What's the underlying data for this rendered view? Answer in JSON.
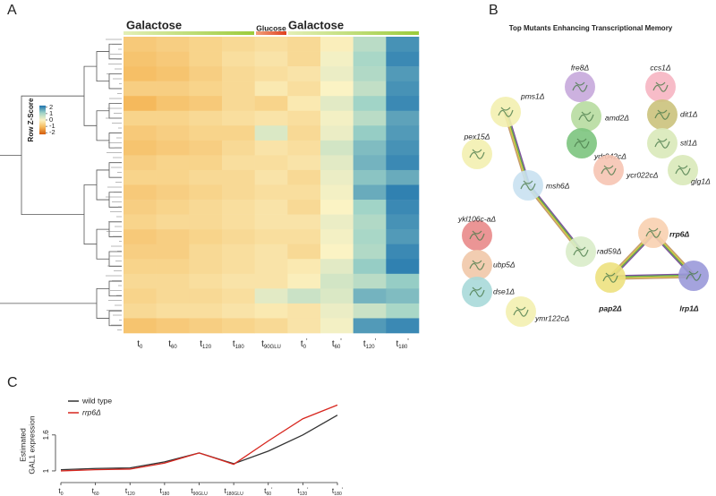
{
  "panels": {
    "a": "A",
    "b": "B",
    "c": "C"
  },
  "chart_data": [
    {
      "type": "heatmap",
      "groups": [
        "Galactose",
        "Glucose",
        "Galactose"
      ],
      "categories": [
        {
          "t": "t",
          "sub": "0"
        },
        {
          "t": "t",
          "sub": "60"
        },
        {
          "t": "t",
          "sub": "120"
        },
        {
          "t": "t",
          "sub": "180"
        },
        {
          "t": "t",
          "sub": "90GLU"
        },
        {
          "t": "t",
          "sub": "0",
          "prime": "'"
        },
        {
          "t": "t",
          "sub": "60",
          "prime": "'"
        },
        {
          "t": "t",
          "sub": "120",
          "prime": "'"
        },
        {
          "t": "t",
          "sub": "180",
          "prime": "'"
        }
      ],
      "rows": [
        [
          -0.8,
          -0.7,
          -0.6,
          -0.5,
          -0.4,
          -0.5,
          -0.1,
          0.8,
          1.9
        ],
        [
          -0.9,
          -0.8,
          -0.6,
          -0.4,
          -0.3,
          -0.5,
          0.1,
          1.0,
          2.0
        ],
        [
          -1.0,
          -0.9,
          -0.7,
          -0.5,
          -0.4,
          -0.3,
          0.2,
          0.9,
          1.8
        ],
        [
          -0.7,
          -0.7,
          -0.6,
          -0.5,
          -0.2,
          -0.4,
          0.0,
          0.7,
          1.9
        ],
        [
          -1.1,
          -0.9,
          -0.8,
          -0.5,
          -0.6,
          -0.2,
          0.3,
          1.1,
          2.0
        ],
        [
          -0.6,
          -0.6,
          -0.5,
          -0.4,
          -0.3,
          -0.4,
          0.1,
          0.8,
          1.7
        ],
        [
          -0.8,
          -0.7,
          -0.6,
          -0.6,
          0.4,
          -0.5,
          0.2,
          1.2,
          1.8
        ],
        [
          -0.9,
          -0.8,
          -0.7,
          -0.5,
          -0.3,
          -0.4,
          0.5,
          1.4,
          1.9
        ],
        [
          -0.7,
          -0.6,
          -0.6,
          -0.4,
          -0.4,
          -0.3,
          0.3,
          1.5,
          2.0
        ],
        [
          -0.6,
          -0.6,
          -0.5,
          -0.5,
          -0.3,
          -0.5,
          0.2,
          1.3,
          1.6
        ],
        [
          -0.8,
          -0.7,
          -0.6,
          -0.5,
          -0.4,
          -0.4,
          0.1,
          1.6,
          2.1
        ],
        [
          -0.7,
          -0.6,
          -0.5,
          -0.4,
          -0.3,
          -0.5,
          0.0,
          1.1,
          2.0
        ],
        [
          -0.6,
          -0.5,
          -0.5,
          -0.4,
          -0.3,
          -0.3,
          0.2,
          0.9,
          1.9
        ],
        [
          -0.8,
          -0.7,
          -0.6,
          -0.5,
          -0.4,
          -0.4,
          0.1,
          1.0,
          1.8
        ],
        [
          -0.7,
          -0.7,
          -0.5,
          -0.4,
          -0.3,
          -0.5,
          0.0,
          0.9,
          2.0
        ],
        [
          -0.6,
          -0.6,
          -0.5,
          -0.4,
          -0.3,
          -0.2,
          0.3,
          1.2,
          2.1
        ],
        [
          -0.5,
          -0.5,
          -0.4,
          -0.3,
          -0.3,
          -0.1,
          0.5,
          0.8,
          1.2
        ],
        [
          -0.6,
          -0.5,
          -0.5,
          -0.4,
          0.3,
          0.6,
          0.4,
          1.5,
          1.4
        ],
        [
          -0.5,
          -0.4,
          -0.4,
          -0.3,
          -0.2,
          -0.3,
          0.2,
          0.6,
          1.0
        ],
        [
          -0.9,
          -0.8,
          -0.7,
          -0.6,
          -0.5,
          -0.3,
          0.1,
          1.8,
          2.0
        ]
      ],
      "colorscale": [
        "#d45a0a",
        "#f5b85a",
        "#fbf3c4",
        "#9fd3c7",
        "#1f74ae"
      ],
      "colorbar": {
        "title": "Row Z-Score",
        "zlim": [
          -2.25,
          2.25
        ],
        "ticks": [
          2,
          1,
          0,
          -1,
          -2
        ]
      }
    },
    {
      "type": "line",
      "ylabel": [
        "Estimated",
        "GAL1 expression"
      ],
      "categories": [
        {
          "t": "t",
          "sub": "0"
        },
        {
          "t": "t",
          "sub": "60"
        },
        {
          "t": "t",
          "sub": "120"
        },
        {
          "t": "t",
          "sub": "180"
        },
        {
          "t": "t",
          "sub": "90GLU"
        },
        {
          "t": "t",
          "sub": "180GLU"
        },
        {
          "t": "t",
          "sub": "60",
          "prime": "'"
        },
        {
          "t": "t",
          "sub": "120",
          "prime": "'"
        },
        {
          "t": "t",
          "sub": "180",
          "prime": "'"
        }
      ],
      "series": [
        {
          "name": "wild type",
          "color": "#333333",
          "values": [
            1.02,
            1.04,
            1.05,
            1.15,
            1.3,
            1.12,
            1.33,
            1.6,
            1.93
          ]
        },
        {
          "name": "rrp6Δ",
          "color": "#d7261e",
          "values": [
            1.0,
            1.02,
            1.03,
            1.13,
            1.3,
            1.11,
            1.5,
            1.87,
            2.1
          ]
        }
      ],
      "ylim": [
        0.85,
        2.15
      ],
      "yticks": [
        1.0,
        1.6
      ]
    }
  ],
  "network": {
    "title": "Top Mutants Enhancing Transcriptional Memory",
    "nodes": [
      {
        "label": "fre8Δ",
        "color": "#c7a9dc"
      },
      {
        "label": "ccs1Δ",
        "color": "#f6b5c2"
      },
      {
        "label": "pms1Δ",
        "color": "#f3efb0"
      },
      {
        "label": "amd2Δ",
        "color": "#b7dca0"
      },
      {
        "label": "dit1Δ",
        "color": "#cbc27c"
      },
      {
        "label": "ydr042cΔ",
        "color": "#7cc47e"
      },
      {
        "label": "stl1Δ",
        "color": "#d9e9b9"
      },
      {
        "label": "pex15Δ",
        "color": "#f3efb0"
      },
      {
        "label": "ycr022cΔ",
        "color": "#f6c4b3"
      },
      {
        "label": "glg1Δ",
        "color": "#d9e9b9"
      },
      {
        "label": "msh6Δ",
        "color": "#c9e1f1"
      },
      {
        "label": "ykl106c-aΔ",
        "color": "#e98a8a"
      },
      {
        "label": "rrp6Δ",
        "color": "#f8d0b0",
        "bold": true
      },
      {
        "label": "rad59Δ",
        "color": "#d9ecc9"
      },
      {
        "label": "ubp5Δ",
        "color": "#f1c8a9"
      },
      {
        "label": "dse1Δ",
        "color": "#a9d9d9"
      },
      {
        "label": "pap2Δ",
        "color": "#ede180",
        "bold": true
      },
      {
        "label": "lrp1Δ",
        "color": "#9a99d9",
        "bold": true
      },
      {
        "label": "ymr122cΔ",
        "color": "#f3efb0"
      }
    ],
    "edges": [
      [
        2,
        10
      ],
      [
        10,
        13
      ],
      [
        12,
        16
      ],
      [
        16,
        17
      ],
      [
        17,
        12
      ]
    ]
  }
}
